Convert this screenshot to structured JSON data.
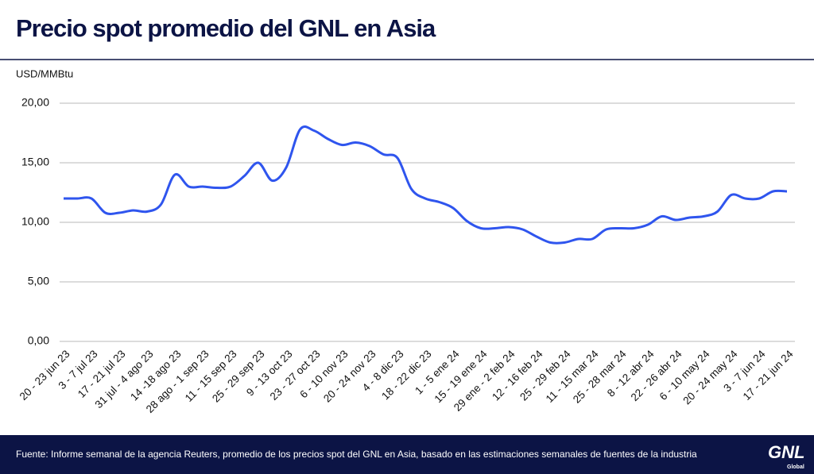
{
  "chart_data": {
    "type": "line",
    "title": "Precio spot promedio del GNL en Asia",
    "y_label": "USD/MMBtu",
    "categories": [
      "20 - 23 jun 23",
      null,
      "3 - 7 jul 23",
      null,
      "17 - 21 jul 23",
      null,
      "31 jul - 4 ago 23",
      null,
      "14 -18 ago 23",
      null,
      "28 ago - 1 sep 23",
      null,
      "11 - 15 sep 23",
      null,
      "25 - 29 sep 23",
      null,
      "9 - 13 oct 23",
      null,
      "23 - 27 oct 23",
      null,
      "6 - 10 nov 23",
      null,
      "20 - 24 nov 23",
      null,
      "4 - 8 dic 23",
      null,
      "18 - 22 dic 23",
      null,
      "1 - 5 ene 24",
      null,
      "15 - 19 ene 24",
      null,
      "29 ene - 2 feb 24",
      null,
      "12 - 16 feb 24",
      null,
      "25 - 29 feb 24",
      null,
      "11 - 15 mar 24",
      null,
      "25 - 28 mar 24",
      null,
      "8 - 12 abr 24",
      null,
      "22 - 26 abr 24",
      null,
      "6 - 10 may 24",
      null,
      "20 - 24 may 24",
      null,
      "3 - 7 jun 24",
      null,
      "17 - 21 jun 24"
    ],
    "values": [
      12.0,
      12.0,
      12.0,
      10.8,
      10.8,
      11.0,
      10.9,
      11.5,
      14.0,
      13.0,
      13.0,
      12.9,
      13.0,
      13.9,
      15.0,
      13.5,
      14.6,
      17.8,
      17.7,
      17.0,
      16.5,
      16.7,
      16.4,
      15.7,
      15.4,
      12.8,
      12.0,
      11.7,
      11.2,
      10.1,
      9.5,
      9.5,
      9.6,
      9.4,
      8.8,
      8.3,
      8.3,
      8.6,
      8.6,
      9.4,
      9.5,
      9.5,
      9.8,
      10.5,
      10.2,
      10.4,
      10.5,
      10.9,
      12.3,
      12.0,
      12.0,
      12.6,
      12.6
    ],
    "color": "#2f55ee",
    "ylim": [
      0,
      20
    ],
    "yticks": [
      {
        "value": 0,
        "label": "0,00"
      },
      {
        "value": 5,
        "label": "5,00"
      },
      {
        "value": 10,
        "label": "10,00"
      },
      {
        "value": 15,
        "label": "15,00"
      },
      {
        "value": 20,
        "label": "20,00"
      }
    ],
    "grid": true
  },
  "footer": {
    "source": "Fuente: Informe semanal de la agencia Reuters, promedio de los precios spot del GNL en Asia, basado en las estimaciones semanales de fuentes de la industria",
    "logo": "GNL",
    "logo_sub": "Global"
  }
}
